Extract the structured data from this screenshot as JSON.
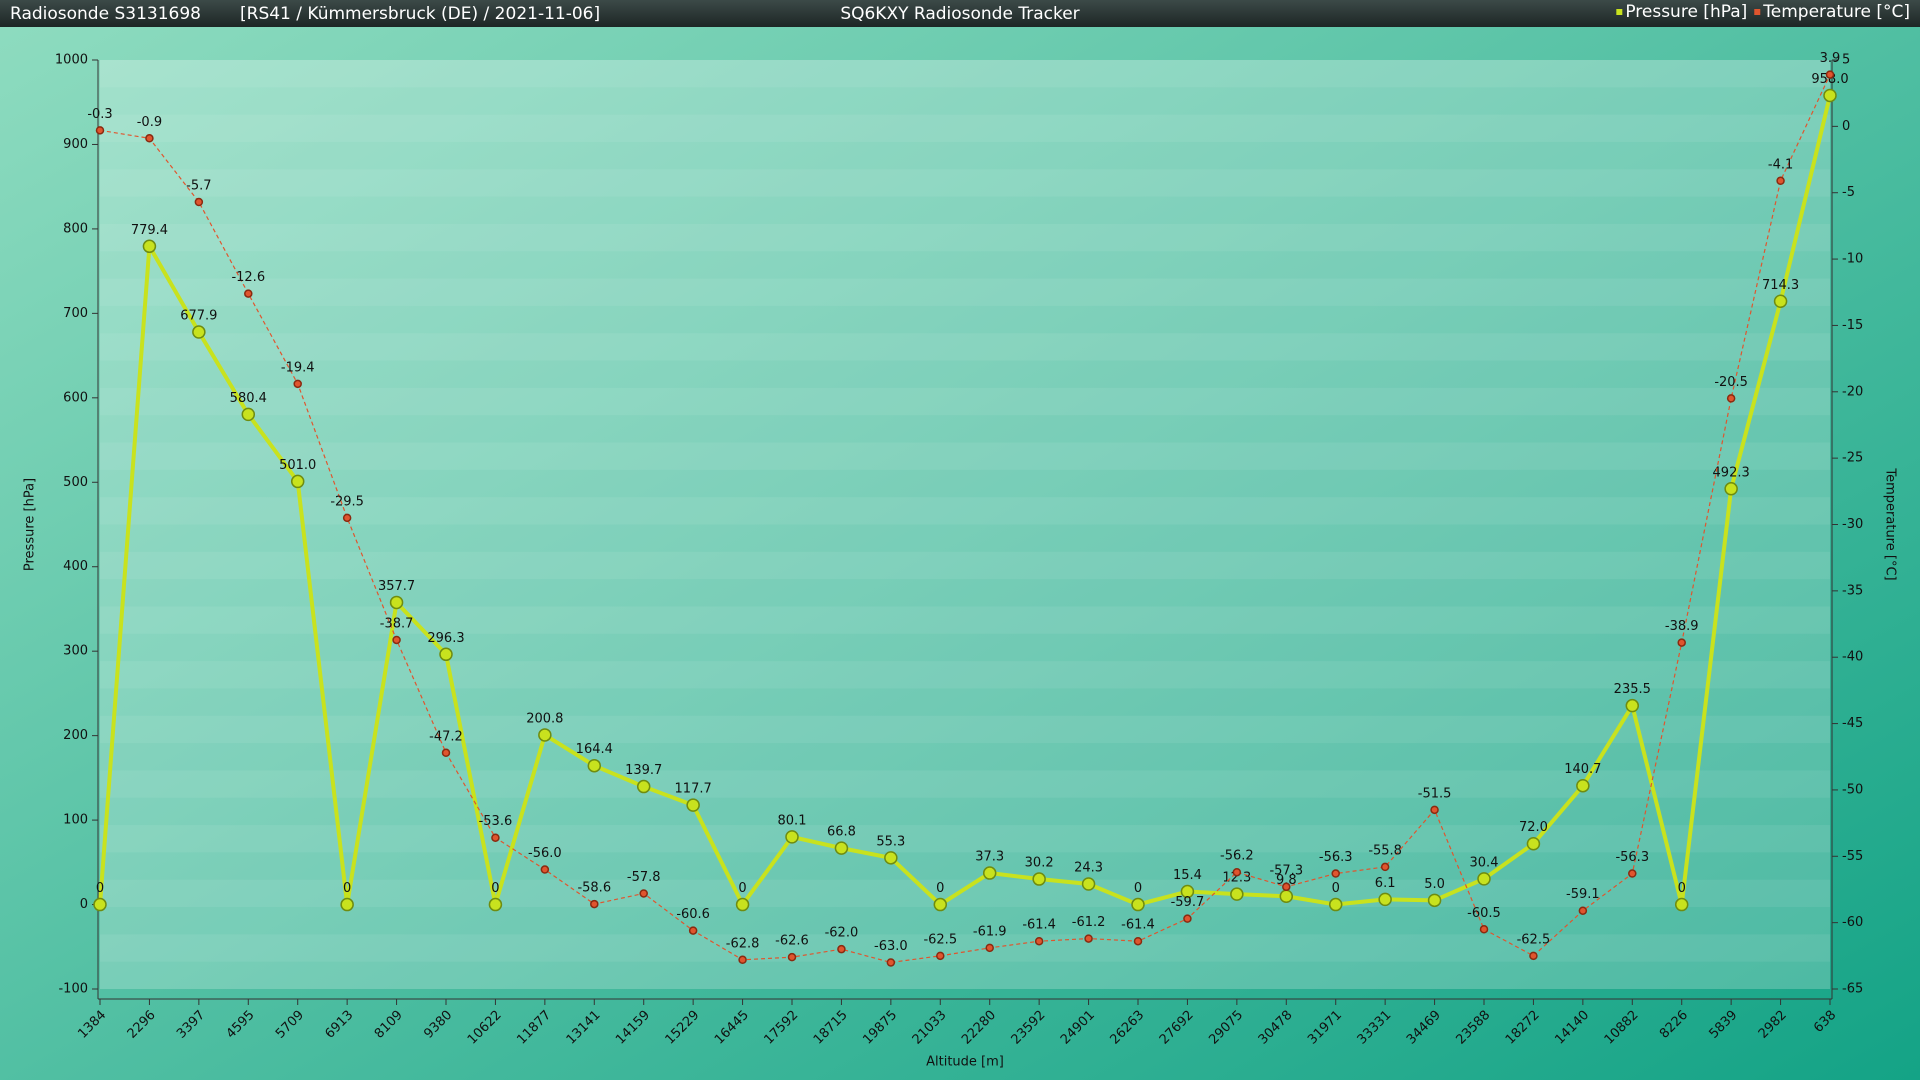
{
  "chart_data": {
    "type": "line",
    "title": "SQ6KXY Radiosonde Tracker",
    "subtitle": "Radiosonde S3131698",
    "info": "[RS41 / Kümmersbruck (DE) / 2021-11-06]",
    "x_label": "Altitude [m]",
    "y_label": "Pressure [hPa]",
    "y2_label": "Temperature [°C]",
    "categories": [
      "1384",
      "2296",
      "3397",
      "4595",
      "5709",
      "6913",
      "8109",
      "9380",
      "10622",
      "11877",
      "13141",
      "14159",
      "15229",
      "16445",
      "17592",
      "18715",
      "19875",
      "21033",
      "22280",
      "23592",
      "24901",
      "26263",
      "27692",
      "29075",
      "30478",
      "31971",
      "33331",
      "34469",
      "23588",
      "18272",
      "14140",
      "10882",
      "8226",
      "5839",
      "2982",
      "638"
    ],
    "series": [
      {
        "name": "Pressure [hPa]",
        "color": "#c8e21e",
        "axis": "y",
        "values": [
          0,
          779.4,
          677.9,
          580.4,
          501.0,
          0,
          357.7,
          296.3,
          0,
          200.8,
          164.4,
          139.7,
          117.7,
          0,
          80.1,
          66.8,
          55.3,
          0,
          37.3,
          30.2,
          24.3,
          0,
          15.4,
          12.3,
          9.8,
          0,
          6.1,
          5.0,
          30.4,
          72.0,
          140.7,
          235.5,
          0,
          492.3,
          714.3,
          958.0
        ],
        "value_labels": [
          "0",
          "779.4",
          "677.9",
          "580.4",
          "501.0",
          "0",
          "357.7",
          "296.3",
          "0",
          "200.8",
          "164.4",
          "139.7",
          "117.7",
          "0",
          "80.1",
          "66.8",
          "55.3",
          "0",
          "37.3",
          "30.2",
          "24.3",
          "0",
          "15.4",
          "12.3",
          "9.8",
          "0",
          "6.1",
          "5.0",
          "30.4",
          "72.0",
          "140.7",
          "235.5",
          "0",
          "492.3",
          "714.3",
          "958.0"
        ]
      },
      {
        "name": "Temperature [°C]",
        "color": "#e0552e",
        "axis": "y2",
        "values": [
          -0.3,
          -0.9,
          -5.7,
          -12.6,
          -19.4,
          -29.5,
          -38.7,
          -47.2,
          -53.6,
          -56.0,
          -58.6,
          -57.8,
          -60.6,
          -62.8,
          -62.6,
          -62.0,
          -63.0,
          -62.5,
          -61.9,
          -61.4,
          -61.2,
          -61.4,
          -59.7,
          -56.2,
          -57.3,
          -56.3,
          -55.8,
          -51.5,
          -60.5,
          -62.5,
          -59.1,
          -56.3,
          -38.9,
          -20.5,
          -4.1,
          3.9
        ],
        "value_labels": [
          "-0.3",
          "-0.9",
          "-5.7",
          "-12.6",
          "-19.4",
          "-29.5",
          "-38.7",
          "-47.2",
          "-53.6",
          "-56.0",
          "-58.6",
          "-57.8",
          "-60.6",
          "-62.8",
          "-62.6",
          "-62.0",
          "-63.0",
          "-62.5",
          "-61.9",
          "-61.4",
          "-61.2",
          "-61.4",
          "-59.7",
          "-56.2",
          "-57.3",
          "-56.3",
          "-55.8",
          "-51.5",
          "-60.5",
          "-62.5",
          "-59.1",
          "-56.3",
          "-38.9",
          "-20.5",
          "-4.1",
          "3.9"
        ]
      }
    ],
    "ylim": [
      -100,
      1000
    ],
    "yticks": [
      -100,
      0,
      100,
      200,
      300,
      400,
      500,
      600,
      700,
      800,
      900,
      1000
    ],
    "y2lim": [
      -65,
      5
    ],
    "y2ticks": [
      -65,
      -60,
      -55,
      -50,
      -45,
      -40,
      -35,
      -30,
      -25,
      -20,
      -15,
      -10,
      -5,
      0,
      5
    ],
    "legend": "top-right"
  }
}
